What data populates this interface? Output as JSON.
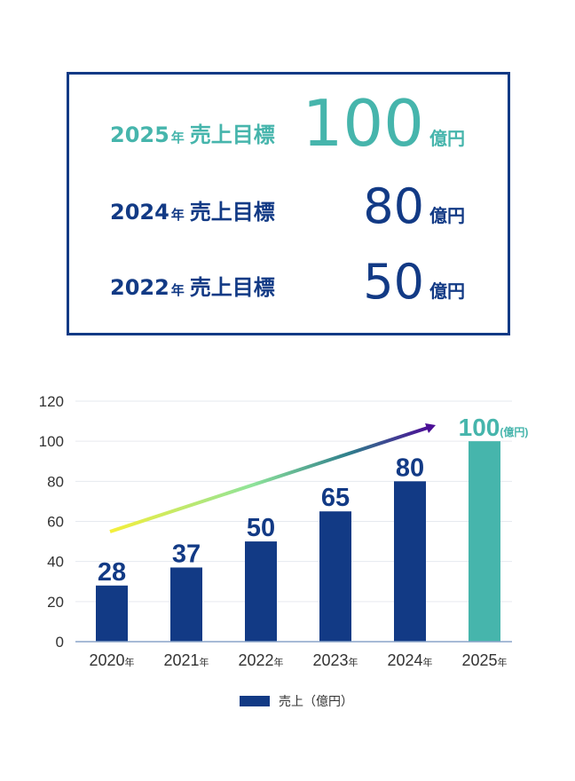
{
  "targets": [
    {
      "year": "2025",
      "year_suffix": "年",
      "label": "売上目標",
      "value": "100",
      "unit": "億円",
      "color": "#46b5ac"
    },
    {
      "year": "2024",
      "year_suffix": "年",
      "label": "売上目標",
      "value": "80",
      "unit": "億円",
      "color": "#123a85"
    },
    {
      "year": "2022",
      "year_suffix": "年",
      "label": "売上目標",
      "value": "50",
      "unit": "億円",
      "color": "#123a85"
    }
  ],
  "chart_data": {
    "type": "bar",
    "categories": [
      "2020",
      "2021",
      "2022",
      "2023",
      "2024",
      "2025"
    ],
    "category_suffix": "年",
    "values": [
      28,
      37,
      50,
      65,
      80,
      100
    ],
    "data_labels": [
      "28",
      "37",
      "50",
      "65",
      "80",
      "100"
    ],
    "last_label_unit": "(億円)",
    "colors": [
      "#123a85",
      "#123a85",
      "#123a85",
      "#123a85",
      "#123a85",
      "#46b5ac"
    ],
    "yticks": [
      "0",
      "20",
      "40",
      "60",
      "80",
      "100",
      "120"
    ],
    "ylim": [
      0,
      120
    ],
    "grid": true,
    "legend": {
      "label": "売上（億円）",
      "position": "bottom"
    },
    "trend_arrow": {
      "colors": [
        "#f5ef3a",
        "#8ee39a",
        "#2f7f8c",
        "#4b0f96"
      ]
    }
  }
}
